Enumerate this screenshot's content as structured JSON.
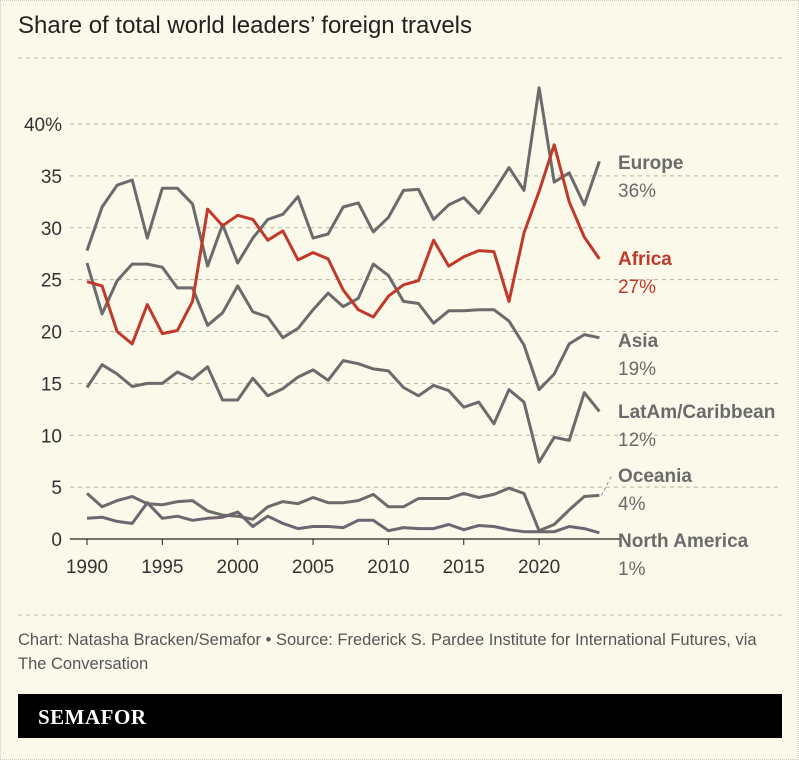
{
  "title": "Share of total world leaders’ foreign travels",
  "source": "Chart: Natasha Bracken/Semafor • Source: Frederick S. Pardee Institute for International Futures, via The Conversation",
  "brand": "SEMAFOR",
  "chart_data": {
    "type": "line",
    "title": "Share of total world leaders’ foreign travels",
    "xlim": [
      1990,
      2024
    ],
    "ylim": [
      0,
      45
    ],
    "grid": true,
    "x_ticks": [
      "1990",
      "1995",
      "2000",
      "2005",
      "2010",
      "2015",
      "2020"
    ],
    "y_ticks": [
      "0",
      "5",
      "10",
      "15",
      "20",
      "25",
      "30",
      "35",
      "40%"
    ],
    "x": [
      1990,
      1991,
      1992,
      1993,
      1994,
      1995,
      1996,
      1997,
      1998,
      1999,
      2000,
      2001,
      2002,
      2003,
      2004,
      2005,
      2006,
      2007,
      2008,
      2009,
      2010,
      2011,
      2012,
      2013,
      2014,
      2015,
      2016,
      2017,
      2018,
      2019,
      2020,
      2021,
      2022,
      2023,
      2024
    ],
    "series": [
      {
        "name": "Europe",
        "end_label": "36%",
        "color": "#6b6b6b",
        "values": [
          27.8,
          32,
          34.1,
          34.6,
          29,
          33.8,
          33.8,
          32.3,
          26.3,
          30.3,
          26.6,
          29,
          30.8,
          31.3,
          33,
          29,
          29.4,
          32,
          32.4,
          29.6,
          31,
          33.6,
          33.7,
          30.8,
          32.2,
          32.9,
          31.4,
          33.5,
          35.8,
          33.6,
          43.5,
          34.4,
          35.3,
          32.2,
          36.4
        ]
      },
      {
        "name": "Africa",
        "end_label": "27%",
        "color": "#c0392b",
        "values": [
          24.8,
          24.4,
          20,
          18.8,
          22.6,
          19.8,
          20.1,
          22.9,
          31.8,
          30.2,
          31.2,
          30.8,
          28.8,
          29.7,
          26.9,
          27.6,
          27,
          24,
          22.1,
          21.4,
          23.4,
          24.5,
          24.9,
          28.8,
          26.3,
          27.2,
          27.8,
          27.7,
          22.9,
          29.5,
          33.5,
          38,
          32.5,
          29.1,
          27
        ]
      },
      {
        "name": "Asia",
        "end_label": "19%",
        "color": "#6b6b6b",
        "values": [
          26.6,
          21.7,
          24.9,
          26.5,
          26.5,
          26.2,
          24.2,
          24.2,
          20.6,
          21.8,
          24.4,
          21.9,
          21.4,
          19.4,
          20.3,
          22.1,
          23.7,
          22.4,
          23.2,
          26.5,
          25.4,
          22.9,
          22.7,
          20.8,
          22,
          22,
          22.1,
          22.1,
          21,
          18.7,
          14.4,
          15.9,
          18.8,
          19.7,
          19.4
        ]
      },
      {
        "name": "LatAm/Caribbean",
        "end_label": "12%",
        "color": "#6b6b6b",
        "values": [
          14.6,
          16.8,
          15.9,
          14.7,
          15,
          15,
          16.1,
          15.4,
          16.6,
          13.4,
          13.4,
          15.5,
          13.8,
          14.5,
          15.6,
          16.3,
          15.3,
          17.2,
          16.9,
          16.4,
          16.2,
          14.6,
          13.8,
          14.8,
          14.3,
          12.7,
          13.2,
          11.1,
          14.4,
          13.2,
          7.4,
          9.8,
          9.5,
          14.1,
          12.3
        ]
      },
      {
        "name": "Oceania",
        "end_label": "4%",
        "color": "#6b6b6b",
        "values": [
          4.4,
          3.1,
          3.7,
          4.1,
          3.4,
          3.3,
          3.6,
          3.7,
          2.7,
          2.3,
          2.2,
          1.9,
          3.1,
          3.6,
          3.4,
          4,
          3.5,
          3.5,
          3.7,
          4.3,
          3.1,
          3.1,
          3.9,
          3.9,
          3.9,
          4.4,
          4,
          4.3,
          4.9,
          4.4,
          0.8,
          1.4,
          2.8,
          4.1,
          4.2
        ]
      },
      {
        "name": "North America",
        "end_label": "1%",
        "color": "#6e6570",
        "values": [
          2,
          2.1,
          1.7,
          1.5,
          3.5,
          2,
          2.2,
          1.8,
          2,
          2.1,
          2.6,
          1.2,
          2.2,
          1.5,
          1,
          1.2,
          1.2,
          1.1,
          1.8,
          1.8,
          0.8,
          1.1,
          1,
          1,
          1.4,
          0.9,
          1.3,
          1.2,
          0.9,
          0.7,
          0.7,
          0.7,
          1.2,
          1,
          0.6
        ]
      }
    ]
  }
}
